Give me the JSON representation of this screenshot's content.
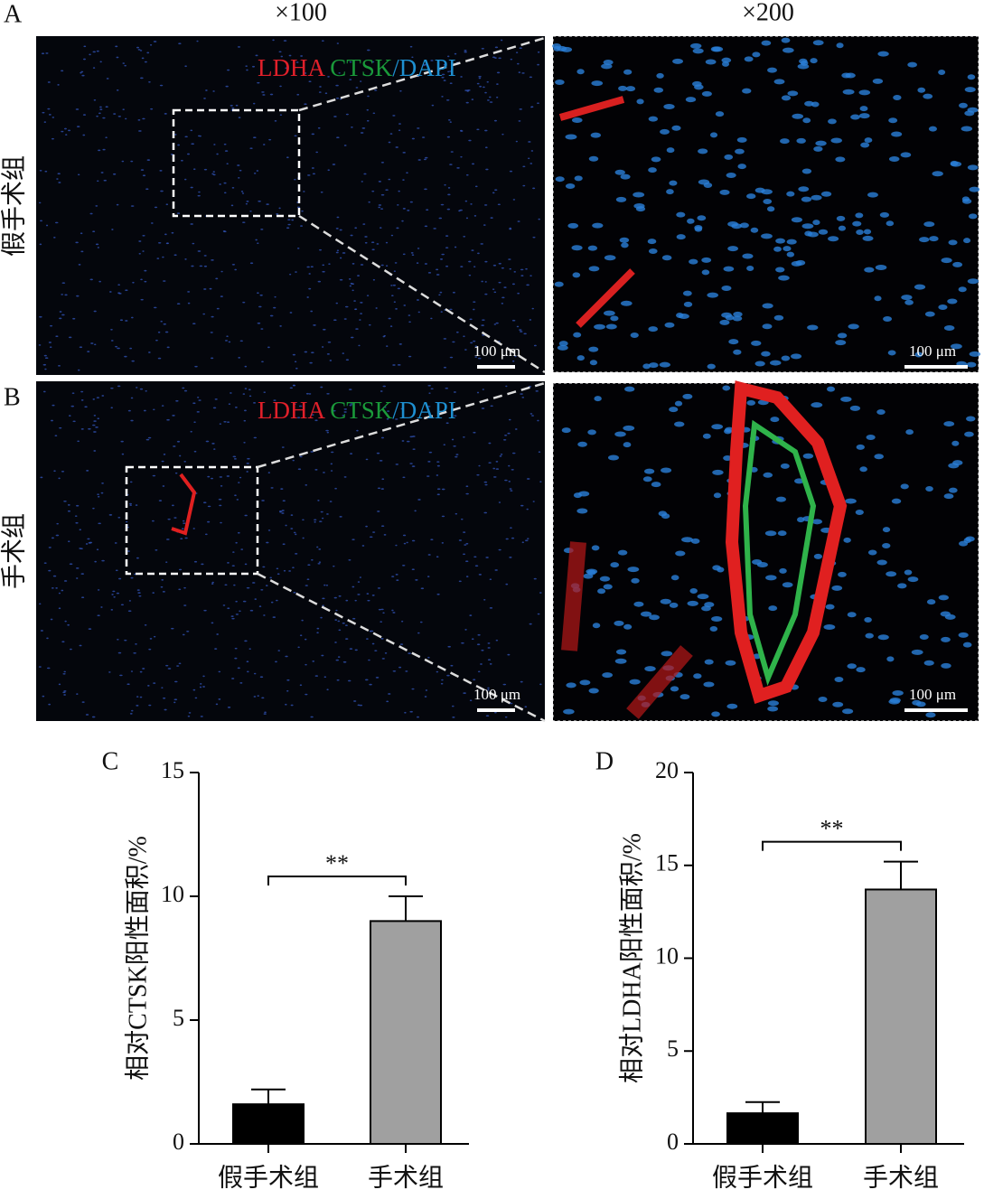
{
  "magnifications": [
    "×100",
    "×200"
  ],
  "rows": [
    {
      "panel": "A",
      "group": "假手术组",
      "stain": [
        "LDHA",
        "CTSK",
        "/DAPI"
      ],
      "scale_bars": [
        "100 μm",
        "100 μm"
      ]
    },
    {
      "panel": "B",
      "group": "手术组",
      "stain": [
        "LDHA",
        "CTSK",
        "/DAPI"
      ],
      "scale_bars": [
        "100 μm",
        "100 μm"
      ]
    }
  ],
  "chart_data": [
    {
      "type": "bar",
      "panel_label": "C",
      "ylabel": "相对CTSK阳性面积/%",
      "categories": [
        "假手术组",
        "手术组"
      ],
      "values": [
        1.6,
        9.0
      ],
      "errors": [
        0.6,
        1.0
      ],
      "colors": [
        "#000000",
        "#a0a0a0"
      ],
      "significance": "**",
      "ylim": [
        0,
        15
      ],
      "yticks": [
        0,
        5,
        10,
        15
      ]
    },
    {
      "type": "bar",
      "panel_label": "D",
      "ylabel": "相对LDHA阳性面积/%",
      "categories": [
        "假手术组",
        "手术组"
      ],
      "values": [
        1.65,
        13.7
      ],
      "errors": [
        0.6,
        1.5
      ],
      "colors": [
        "#000000",
        "#a0a0a0"
      ],
      "significance": "**",
      "ylim": [
        0,
        20
      ],
      "yticks": [
        0,
        5,
        10,
        15,
        20
      ]
    }
  ]
}
